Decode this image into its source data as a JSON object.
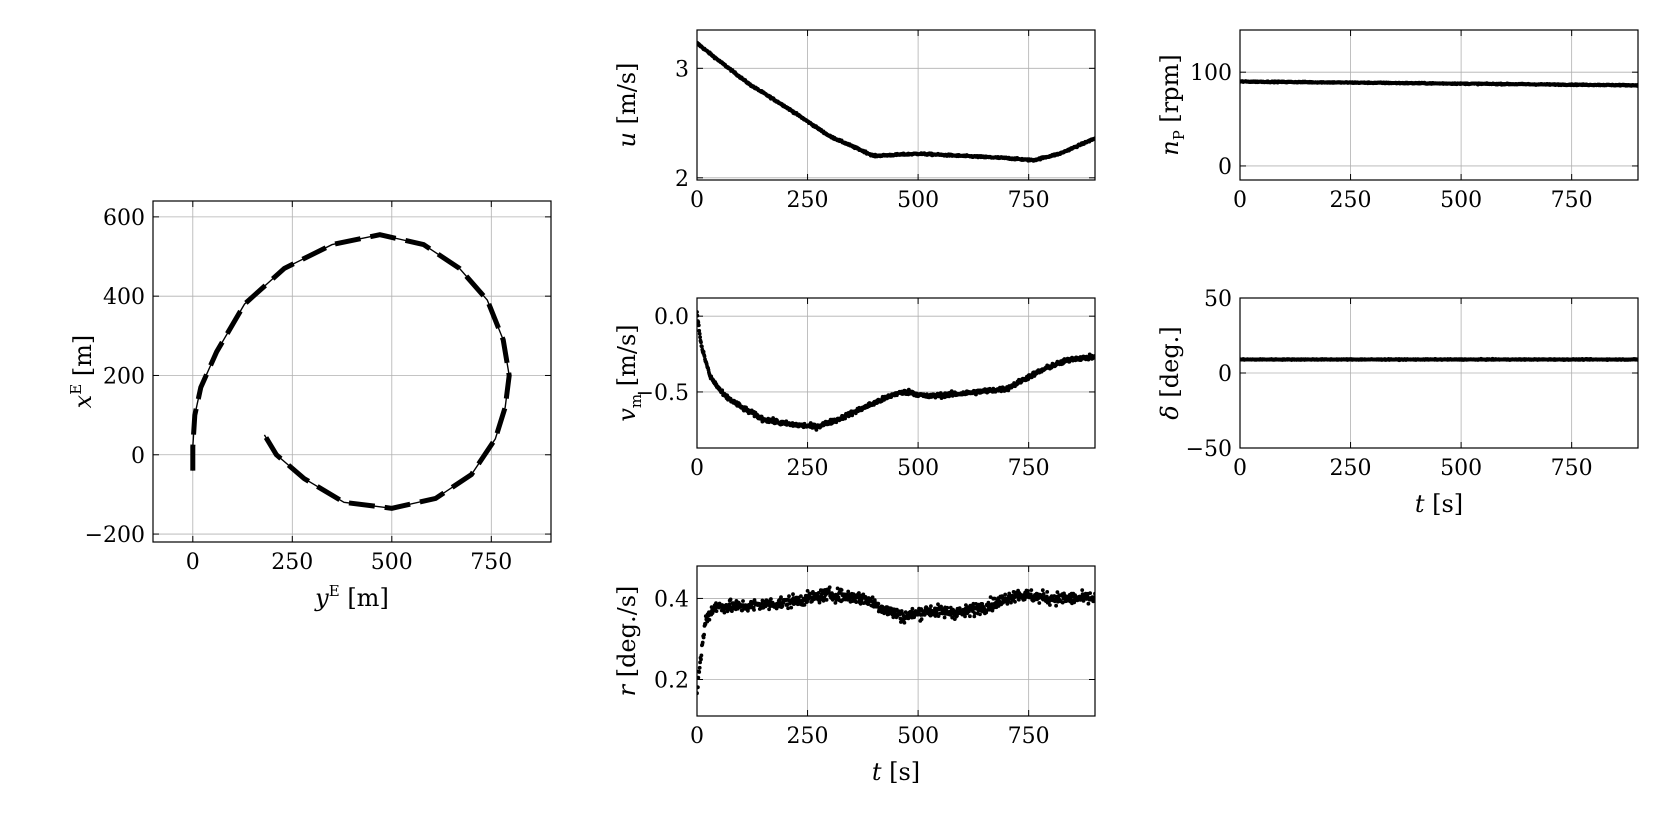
{
  "chart_data": [
    {
      "id": "trajectory",
      "type": "line",
      "style": "dashed",
      "xlabel": {
        "var": "y",
        "sup": "E",
        "unit": "[m]"
      },
      "ylabel": {
        "var": "x",
        "sup": "E",
        "unit": "[m]"
      },
      "xlim": [
        -100,
        900
      ],
      "ylim": [
        -220,
        640
      ],
      "xticks": [
        0,
        250,
        500,
        750
      ],
      "yticks": [
        -200,
        0,
        200,
        400,
        600
      ],
      "xtick_labels": [
        "0",
        "250",
        "500",
        "750"
      ],
      "ytick_labels": [
        "−200",
        "0",
        "200",
        "400",
        "600"
      ],
      "grid": true,
      "points": [
        [
          0,
          -40
        ],
        [
          0,
          20
        ],
        [
          5,
          100
        ],
        [
          20,
          170
        ],
        [
          60,
          260
        ],
        [
          130,
          380
        ],
        [
          230,
          470
        ],
        [
          350,
          530
        ],
        [
          470,
          555
        ],
        [
          580,
          530
        ],
        [
          670,
          470
        ],
        [
          740,
          390
        ],
        [
          780,
          290
        ],
        [
          795,
          200
        ],
        [
          785,
          120
        ],
        [
          760,
          40
        ],
        [
          700,
          -50
        ],
        [
          610,
          -110
        ],
        [
          500,
          -135
        ],
        [
          380,
          -120
        ],
        [
          280,
          -60
        ],
        [
          210,
          0
        ],
        [
          180,
          50
        ]
      ]
    },
    {
      "id": "surge",
      "type": "scatter",
      "xlabel": null,
      "ylabel": {
        "var": "u",
        "unit": "[m/s]"
      },
      "xlim": [
        0,
        900
      ],
      "ylim": [
        1.98,
        3.35
      ],
      "xticks": [
        0,
        250,
        500,
        750
      ],
      "yticks": [
        2,
        3
      ],
      "xtick_labels": [
        "0",
        "250",
        "500",
        "750"
      ],
      "ytick_labels": [
        "2",
        "3"
      ],
      "grid": true,
      "noise": 0.008,
      "trend": [
        [
          0,
          3.23
        ],
        [
          40,
          3.1
        ],
        [
          120,
          2.85
        ],
        [
          200,
          2.65
        ],
        [
          300,
          2.38
        ],
        [
          400,
          2.2
        ],
        [
          500,
          2.22
        ],
        [
          600,
          2.2
        ],
        [
          700,
          2.18
        ],
        [
          760,
          2.16
        ],
        [
          820,
          2.22
        ],
        [
          900,
          2.36
        ]
      ]
    },
    {
      "id": "propeller",
      "type": "scatter",
      "xlabel": null,
      "ylabel": {
        "var": "n",
        "sub": "P",
        "unit": "[rpm]"
      },
      "xlim": [
        0,
        900
      ],
      "ylim": [
        -15,
        145
      ],
      "xticks": [
        0,
        250,
        500,
        750
      ],
      "yticks": [
        0,
        100
      ],
      "xtick_labels": [
        "0",
        "250",
        "500",
        "750"
      ],
      "ytick_labels": [
        "0",
        "100"
      ],
      "grid": true,
      "noise": 0.6,
      "trend": [
        [
          0,
          90
        ],
        [
          900,
          86
        ]
      ]
    },
    {
      "id": "sway",
      "type": "scatter",
      "xlabel": null,
      "ylabel": {
        "var": "v",
        "sub": "m",
        "unit": "[m/s]"
      },
      "xlim": [
        0,
        900
      ],
      "ylim": [
        -0.87,
        0.12
      ],
      "xticks": [
        0,
        250,
        500,
        750
      ],
      "yticks": [
        0.0,
        -0.5
      ],
      "xtick_labels": [
        "0",
        "250",
        "500",
        "750"
      ],
      "ytick_labels": [
        "0.0",
        "−0.5"
      ],
      "grid": true,
      "noise": 0.015,
      "trend": [
        [
          0,
          0.02
        ],
        [
          10,
          -0.2
        ],
        [
          30,
          -0.4
        ],
        [
          60,
          -0.52
        ],
        [
          100,
          -0.6
        ],
        [
          150,
          -0.68
        ],
        [
          200,
          -0.71
        ],
        [
          270,
          -0.73
        ],
        [
          320,
          -0.68
        ],
        [
          380,
          -0.6
        ],
        [
          450,
          -0.51
        ],
        [
          480,
          -0.5
        ],
        [
          520,
          -0.53
        ],
        [
          600,
          -0.51
        ],
        [
          700,
          -0.48
        ],
        [
          750,
          -0.4
        ],
        [
          800,
          -0.33
        ],
        [
          850,
          -0.28
        ],
        [
          900,
          -0.27
        ]
      ]
    },
    {
      "id": "rudder",
      "type": "scatter",
      "xlabel": {
        "var": "t",
        "unit": "[s]"
      },
      "ylabel": {
        "var": "δ",
        "unit": "[deg.]"
      },
      "xlim": [
        0,
        900
      ],
      "ylim": [
        -50,
        50
      ],
      "xticks": [
        0,
        250,
        500,
        750
      ],
      "yticks": [
        -50,
        0,
        50
      ],
      "xtick_labels": [
        "0",
        "250",
        "500",
        "750"
      ],
      "ytick_labels": [
        "−50",
        "0",
        "50"
      ],
      "grid": true,
      "noise": 0.3,
      "trend": [
        [
          0,
          9
        ],
        [
          900,
          9
        ]
      ]
    },
    {
      "id": "yawrate",
      "type": "scatter",
      "xlabel": {
        "var": "t",
        "unit": "[s]"
      },
      "ylabel": {
        "var": "r",
        "unit": "[deg./s]"
      },
      "xlim": [
        0,
        900
      ],
      "ylim": [
        0.11,
        0.48
      ],
      "xticks": [
        0,
        250,
        500,
        750
      ],
      "yticks": [
        0.2,
        0.4
      ],
      "xtick_labels": [
        "0",
        "250",
        "500",
        "750"
      ],
      "ytick_labels": [
        "0.2",
        "0.4"
      ],
      "grid": true,
      "noise": 0.015,
      "trend": [
        [
          0,
          0.17
        ],
        [
          8,
          0.25
        ],
        [
          20,
          0.35
        ],
        [
          40,
          0.38
        ],
        [
          100,
          0.38
        ],
        [
          200,
          0.39
        ],
        [
          300,
          0.41
        ],
        [
          380,
          0.4
        ],
        [
          430,
          0.37
        ],
        [
          470,
          0.355
        ],
        [
          520,
          0.37
        ],
        [
          600,
          0.365
        ],
        [
          680,
          0.39
        ],
        [
          720,
          0.41
        ],
        [
          800,
          0.4
        ],
        [
          900,
          0.4
        ]
      ]
    }
  ]
}
